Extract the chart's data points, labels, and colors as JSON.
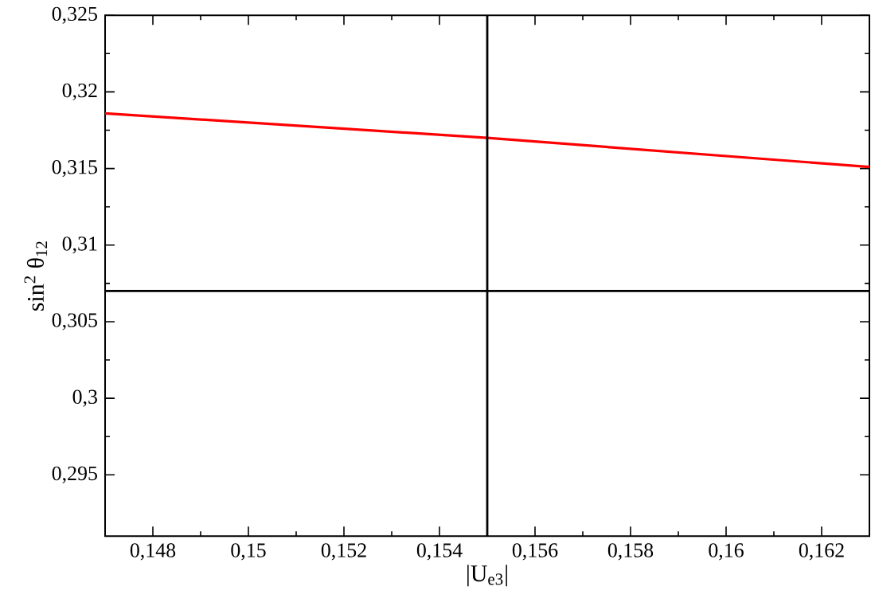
{
  "chart_data": {
    "type": "line",
    "xlabel": "|U$_{e3}$|",
    "ylabel": "sin$^{2}$ θ$_{12}$",
    "x": [
      0.147,
      0.155,
      0.163
    ],
    "series": [
      {
        "color": "#ff0000",
        "values": [
          0.3186,
          0.317,
          0.3151
        ]
      }
    ],
    "xlim": [
      0.147,
      0.163
    ],
    "xticks": [
      {
        "value": 0.148,
        "label": "0,148"
      },
      {
        "value": 0.15,
        "label": "0,15"
      },
      {
        "value": 0.152,
        "label": "0,152"
      },
      {
        "value": 0.154,
        "label": "0,154"
      },
      {
        "value": 0.156,
        "label": "0,156"
      },
      {
        "value": 0.158,
        "label": "0,158"
      },
      {
        "value": 0.16,
        "label": "0,16"
      },
      {
        "value": 0.162,
        "label": "0,162"
      }
    ],
    "ylim": [
      0.291,
      0.325
    ],
    "yticks": [
      {
        "value": 0.295,
        "label": "0,295"
      },
      {
        "value": 0.3,
        "label": "0,3"
      },
      {
        "value": 0.305,
        "label": "0,305"
      },
      {
        "value": 0.31,
        "label": "0,31"
      },
      {
        "value": 0.315,
        "label": "0,315"
      },
      {
        "value": 0.32,
        "label": "0,32"
      },
      {
        "value": 0.325,
        "label": "0,325"
      }
    ],
    "ref_lines": [
      {
        "axis": "y",
        "value": 0.307,
        "color": "#000000"
      },
      {
        "axis": "x",
        "value": 0.155,
        "color": "#000000"
      }
    ],
    "grid": false,
    "marker": "none",
    "line_style": "solid"
  }
}
